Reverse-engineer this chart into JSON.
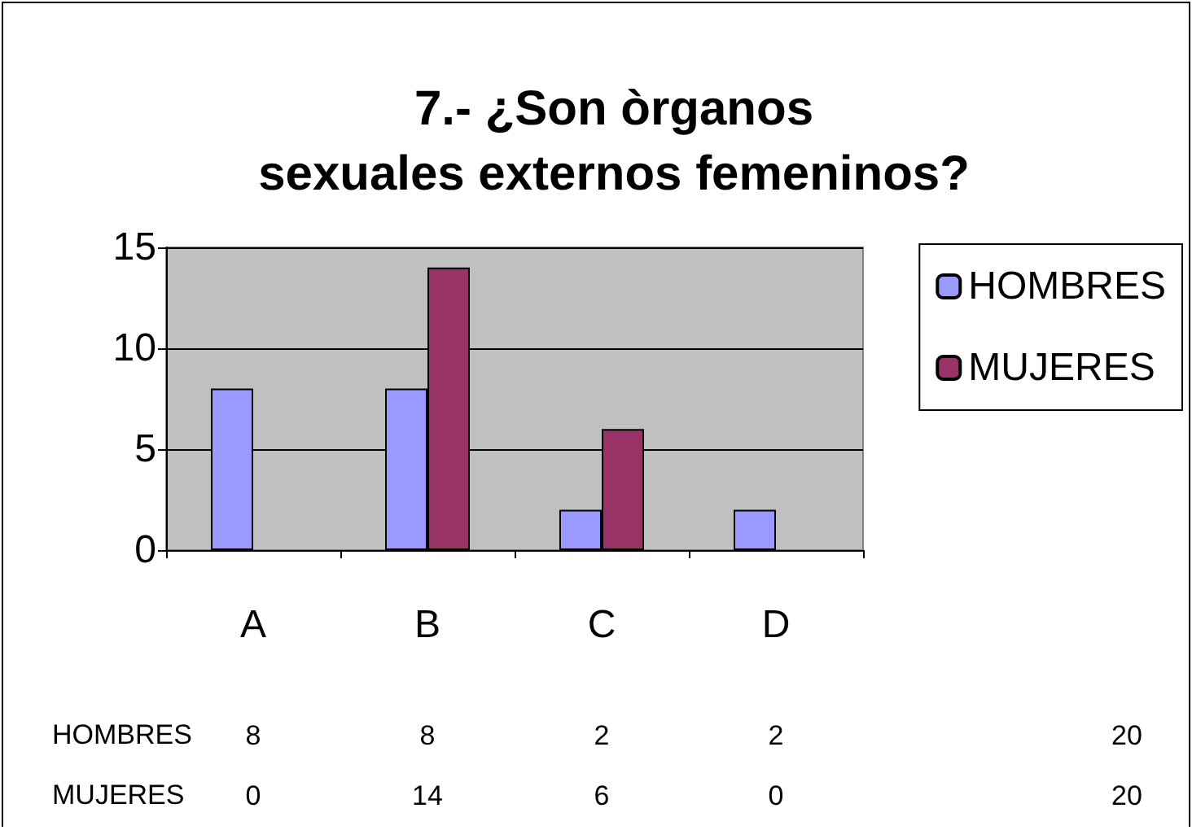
{
  "chart_data": {
    "type": "bar",
    "title": "7.- ¿Son òrganos\nsexuales externos femeninos?",
    "categories": [
      "A",
      "B",
      "C",
      "D"
    ],
    "series": [
      {
        "name": "HOMBRES",
        "color": "#9999ff",
        "values": [
          8,
          8,
          2,
          2
        ]
      },
      {
        "name": "MUJERES",
        "color": "#993366",
        "values": [
          0,
          14,
          6,
          0
        ]
      }
    ],
    "ylim": [
      0,
      15
    ],
    "yticks": [
      0,
      5,
      10,
      15
    ],
    "grid": "y",
    "legend": "right",
    "data_labels": true,
    "annotations": [
      "20",
      "20"
    ]
  }
}
